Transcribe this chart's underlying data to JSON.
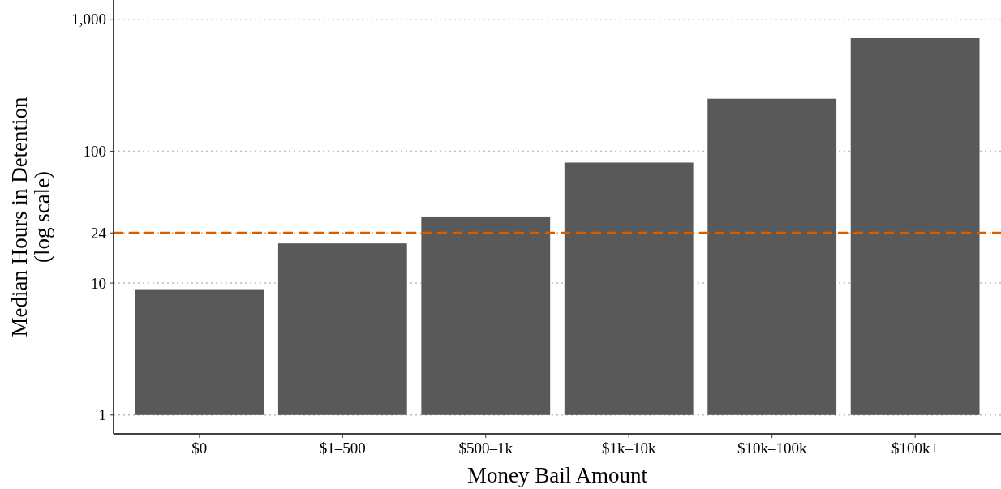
{
  "chart_data": {
    "type": "bar",
    "xlabel": "Money Bail Amount",
    "ylabel": "Median Hours in Detention\n(log scale)",
    "categories": [
      "$0",
      "$1–500",
      "$500–1k",
      "$1k–10k",
      "$10k–100k",
      "$100k+"
    ],
    "values": [
      8,
      19,
      31,
      81,
      249,
      719
    ],
    "base": [
      1,
      1,
      1,
      1,
      1,
      1
    ],
    "color": "#595959",
    "log": true,
    "ylim": [
      0.72,
      1400
    ],
    "yticks": [
      1,
      10,
      {
        "value": 24,
        "label": "24"
      },
      100,
      {
        "value": 1000,
        "label": "1,000"
      }
    ],
    "grid": "y",
    "ref_lines": [
      {
        "axis": "y",
        "value": 24,
        "color": "#d55e00",
        "line_style": "dashed"
      }
    ]
  }
}
